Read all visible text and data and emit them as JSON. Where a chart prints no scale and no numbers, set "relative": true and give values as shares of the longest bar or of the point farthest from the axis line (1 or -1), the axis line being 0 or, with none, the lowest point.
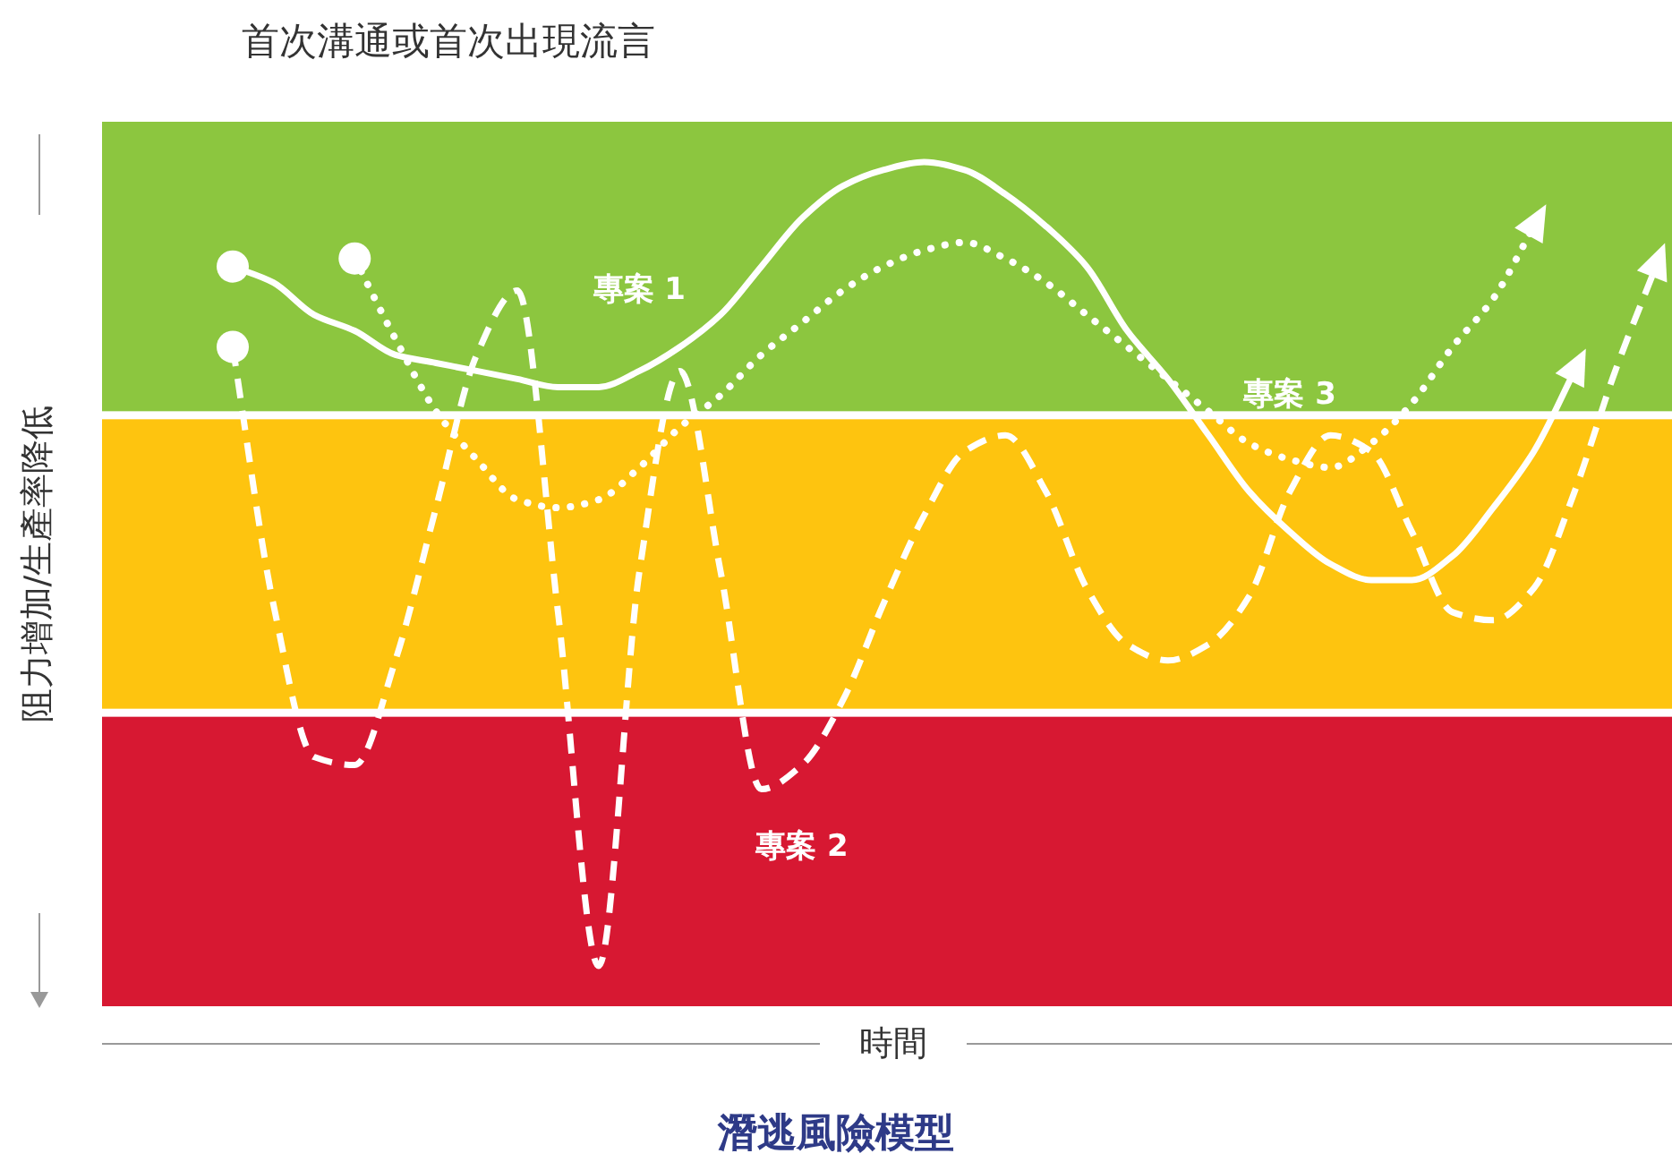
{
  "chart_data": {
    "type": "line",
    "title": "潛逃風險模型",
    "subtitle": "首次溝通或首次出現流言",
    "xlabel": "時間",
    "ylabel": "阻力增加/生產率降低",
    "relative": true,
    "categories": [
      null,
      null,
      null,
      null,
      null,
      null,
      null,
      null,
      null,
      null,
      null,
      null,
      null,
      null,
      null,
      null,
      null,
      null,
      null,
      null,
      null,
      null,
      null,
      null,
      null,
      null,
      null,
      null,
      null,
      null,
      null,
      null,
      null,
      null,
      null,
      null
    ],
    "series": [
      {
        "name": "專案 1",
        "color": "#ffffff",
        "line_style": "solid",
        "values": [
          0.87,
          0.85,
          0.81,
          0.79,
          0.76,
          0.75,
          0.74,
          0.73,
          0.72,
          0.72,
          0.74,
          0.77,
          0.81,
          0.87,
          0.93,
          0.97,
          0.99,
          1.0,
          0.99,
          0.96,
          0.92,
          0.87,
          0.79,
          0.73,
          0.66,
          0.59,
          0.54,
          0.5,
          0.48,
          0.48,
          0.51,
          0.57,
          0.64,
          0.74,
          null,
          null
        ]
      },
      {
        "name": "專案 2",
        "color": "#ffffff",
        "line_style": "dashed",
        "values": [
          0.77,
          0.45,
          0.26,
          0.25,
          0.38,
          0.57,
          0.76,
          0.84,
          0.44,
          0.0,
          0.49,
          0.74,
          0.49,
          0.22,
          0.25,
          0.33,
          0.45,
          0.56,
          0.64,
          0.66,
          0.59,
          0.47,
          0.4,
          0.38,
          0.4,
          0.46,
          0.59,
          0.66,
          0.64,
          0.54,
          0.44,
          0.43,
          0.47,
          0.59,
          0.74,
          0.87
        ]
      },
      {
        "name": "專案 3",
        "color": "#ffffff",
        "line_style": "dotted",
        "values": [
          null,
          null,
          null,
          0.88,
          0.78,
          0.69,
          0.63,
          0.58,
          0.57,
          0.58,
          0.62,
          0.67,
          0.71,
          0.76,
          0.8,
          0.84,
          0.87,
          0.89,
          0.9,
          0.88,
          0.85,
          0.81,
          0.77,
          0.73,
          0.69,
          0.65,
          0.63,
          0.62,
          0.65,
          0.7,
          0.77,
          0.83,
          0.92,
          null,
          null,
          null
        ]
      }
    ],
    "bands": [
      {
        "axis": "y",
        "from": 0.69,
        "to": 1.05,
        "color": "#8cc63f"
      },
      {
        "axis": "y",
        "from": 0.32,
        "to": 0.68,
        "color": "#fec40f"
      },
      {
        "axis": "y",
        "from": -0.05,
        "to": 0.31,
        "color": "#d71832"
      }
    ]
  }
}
